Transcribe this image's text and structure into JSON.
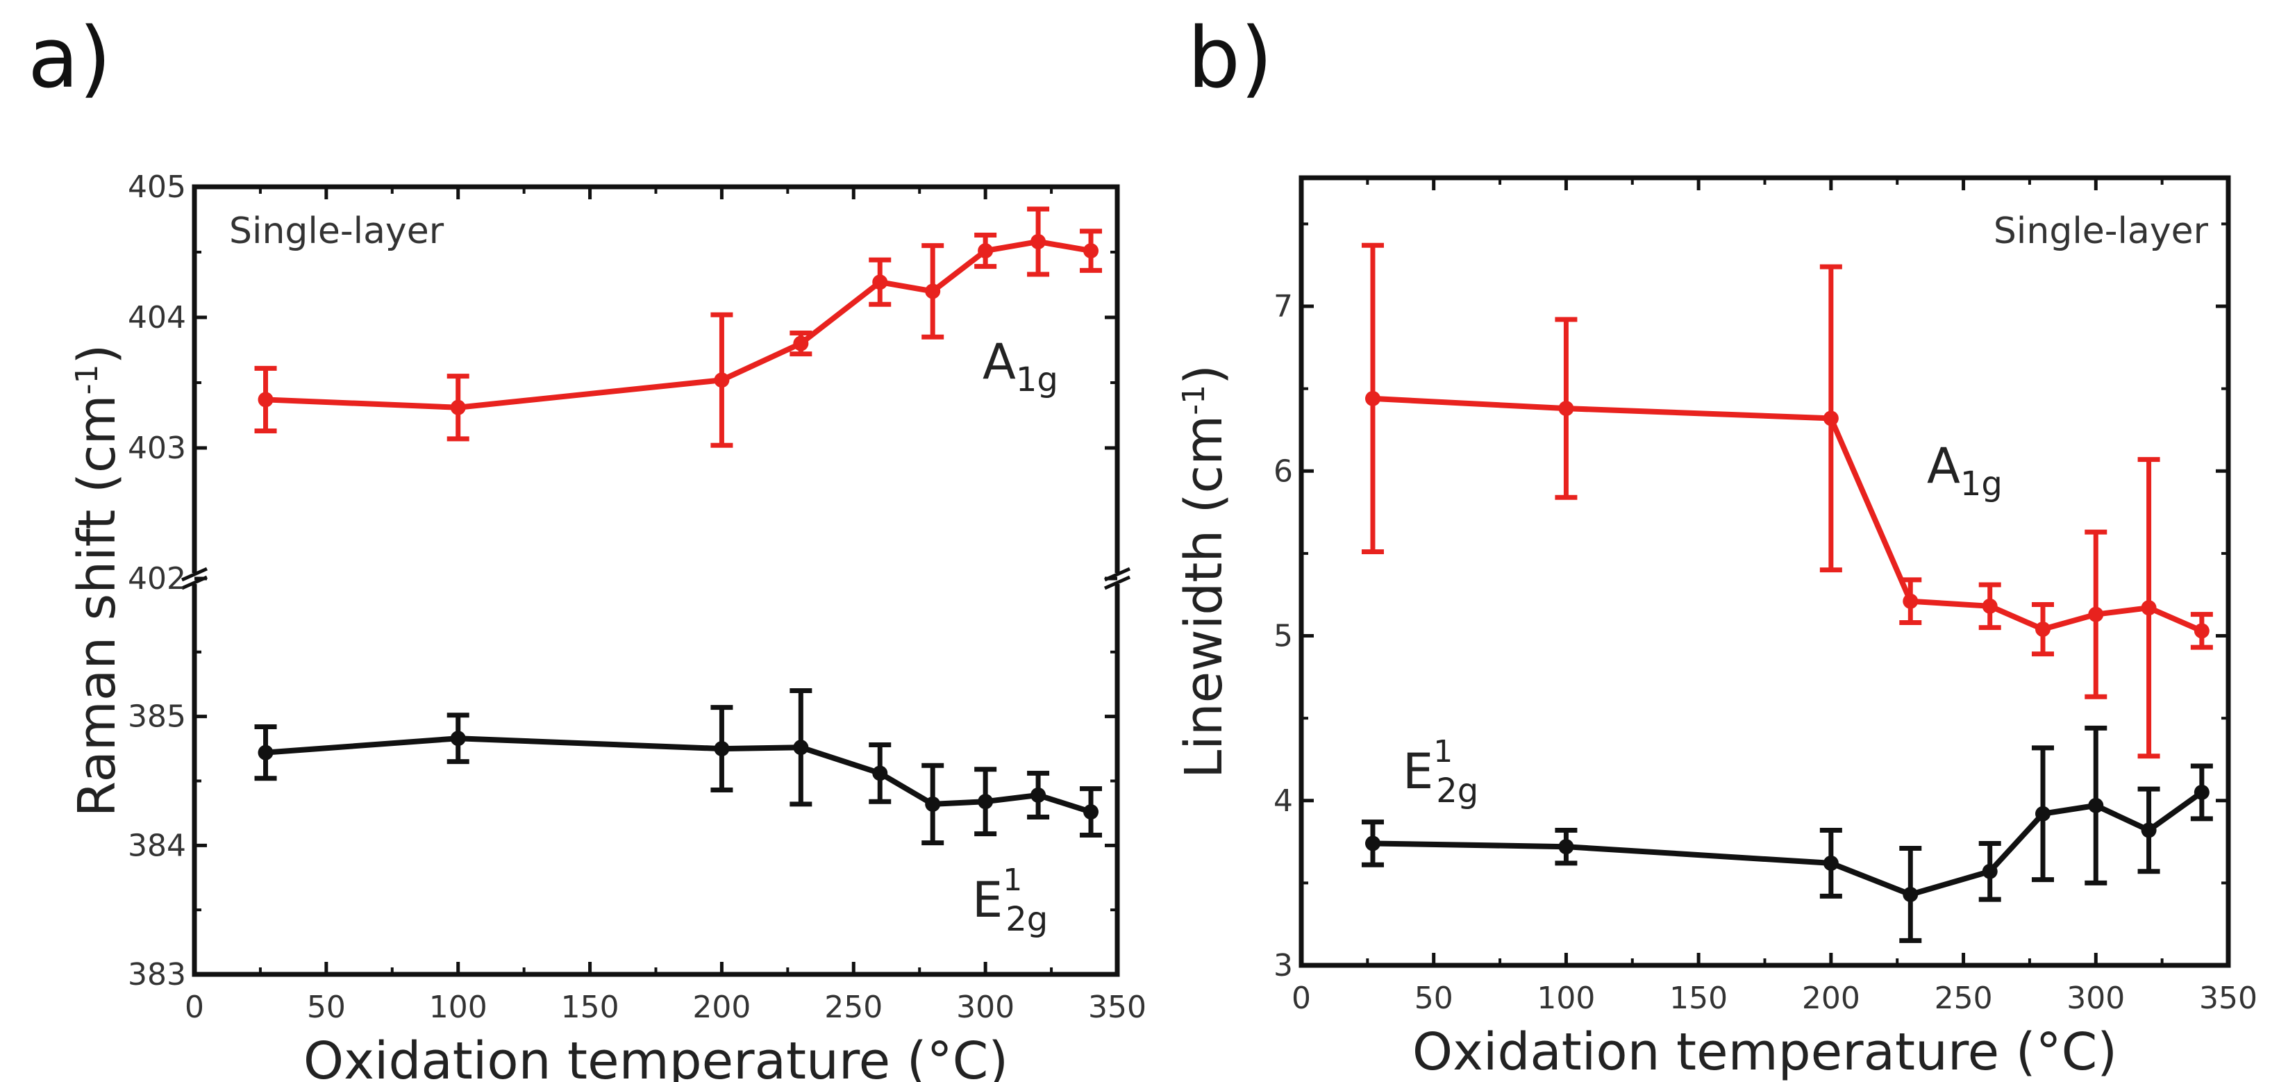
{
  "chart_data": [
    {
      "type": "line",
      "panel_label": "a)",
      "annotation": "Single-layer",
      "xlabel": "Oxidation temperature (°C)",
      "ylabel": "Raman shift (cm-1)",
      "ylabel_main": "Raman shift (cm",
      "ylabel_sup": "-1",
      "ylabel_close": ")",
      "xlim": [
        0,
        350
      ],
      "xticks": [
        "0",
        "50",
        "100",
        "150",
        "200",
        "250",
        "300",
        "350"
      ],
      "y_axis_break": true,
      "ylim_upper": [
        402,
        405
      ],
      "ylim_lower": [
        383,
        386.07
      ],
      "yticks": [
        "383",
        "384",
        "385",
        "402",
        "403",
        "404",
        "405"
      ],
      "x": [
        27,
        100,
        200,
        230,
        260,
        280,
        300,
        320,
        340
      ],
      "series": [
        {
          "name": "A1g",
          "label_main": "A",
          "label_sub": "1g",
          "color": "#e8221e",
          "values": [
            403.37,
            403.31,
            403.52,
            403.8,
            404.27,
            404.2,
            404.51,
            404.58,
            404.51
          ],
          "errors": [
            0.24,
            0.24,
            0.5,
            0.08,
            0.17,
            0.35,
            0.12,
            0.25,
            0.15
          ]
        },
        {
          "name": "E12g",
          "label_main": "E",
          "label_sup": "1",
          "label_sub": "2g",
          "color": "#111111",
          "values": [
            384.72,
            384.83,
            384.75,
            384.76,
            384.56,
            384.32,
            384.34,
            384.39,
            384.26
          ],
          "errors": [
            0.2,
            0.18,
            0.32,
            0.44,
            0.22,
            0.3,
            0.25,
            0.17,
            0.18
          ]
        }
      ]
    },
    {
      "type": "line",
      "panel_label": "b)",
      "annotation": "Single-layer",
      "xlabel": "Oxidation temperature (°C)",
      "ylabel": "Linewidth (cm-1)",
      "ylabel_main": "Linewidth (cm",
      "ylabel_sup": "-1",
      "ylabel_close": ")",
      "xlim": [
        0,
        350
      ],
      "xticks": [
        "0",
        "50",
        "100",
        "150",
        "200",
        "250",
        "300",
        "350"
      ],
      "ylim": [
        3,
        7.78
      ],
      "yticks": [
        "3",
        "4",
        "5",
        "6",
        "7"
      ],
      "x": [
        27,
        100,
        200,
        230,
        260,
        280,
        300,
        320,
        340
      ],
      "series": [
        {
          "name": "A1g",
          "label_main": "A",
          "label_sub": "1g",
          "color": "#e8221e",
          "values": [
            6.44,
            6.38,
            6.32,
            5.21,
            5.18,
            5.04,
            5.13,
            5.17,
            5.03
          ],
          "errors": [
            0.93,
            0.54,
            0.92,
            0.13,
            0.13,
            0.15,
            0.5,
            0.9,
            0.1
          ]
        },
        {
          "name": "E12g",
          "label_main": "E",
          "label_sup": "1",
          "label_sub": "2g",
          "color": "#111111",
          "values": [
            3.74,
            3.72,
            3.62,
            3.43,
            3.57,
            3.92,
            3.97,
            3.82,
            4.05
          ],
          "errors": [
            0.13,
            0.1,
            0.2,
            0.28,
            0.17,
            0.4,
            0.47,
            0.25,
            0.16
          ]
        }
      ]
    }
  ]
}
